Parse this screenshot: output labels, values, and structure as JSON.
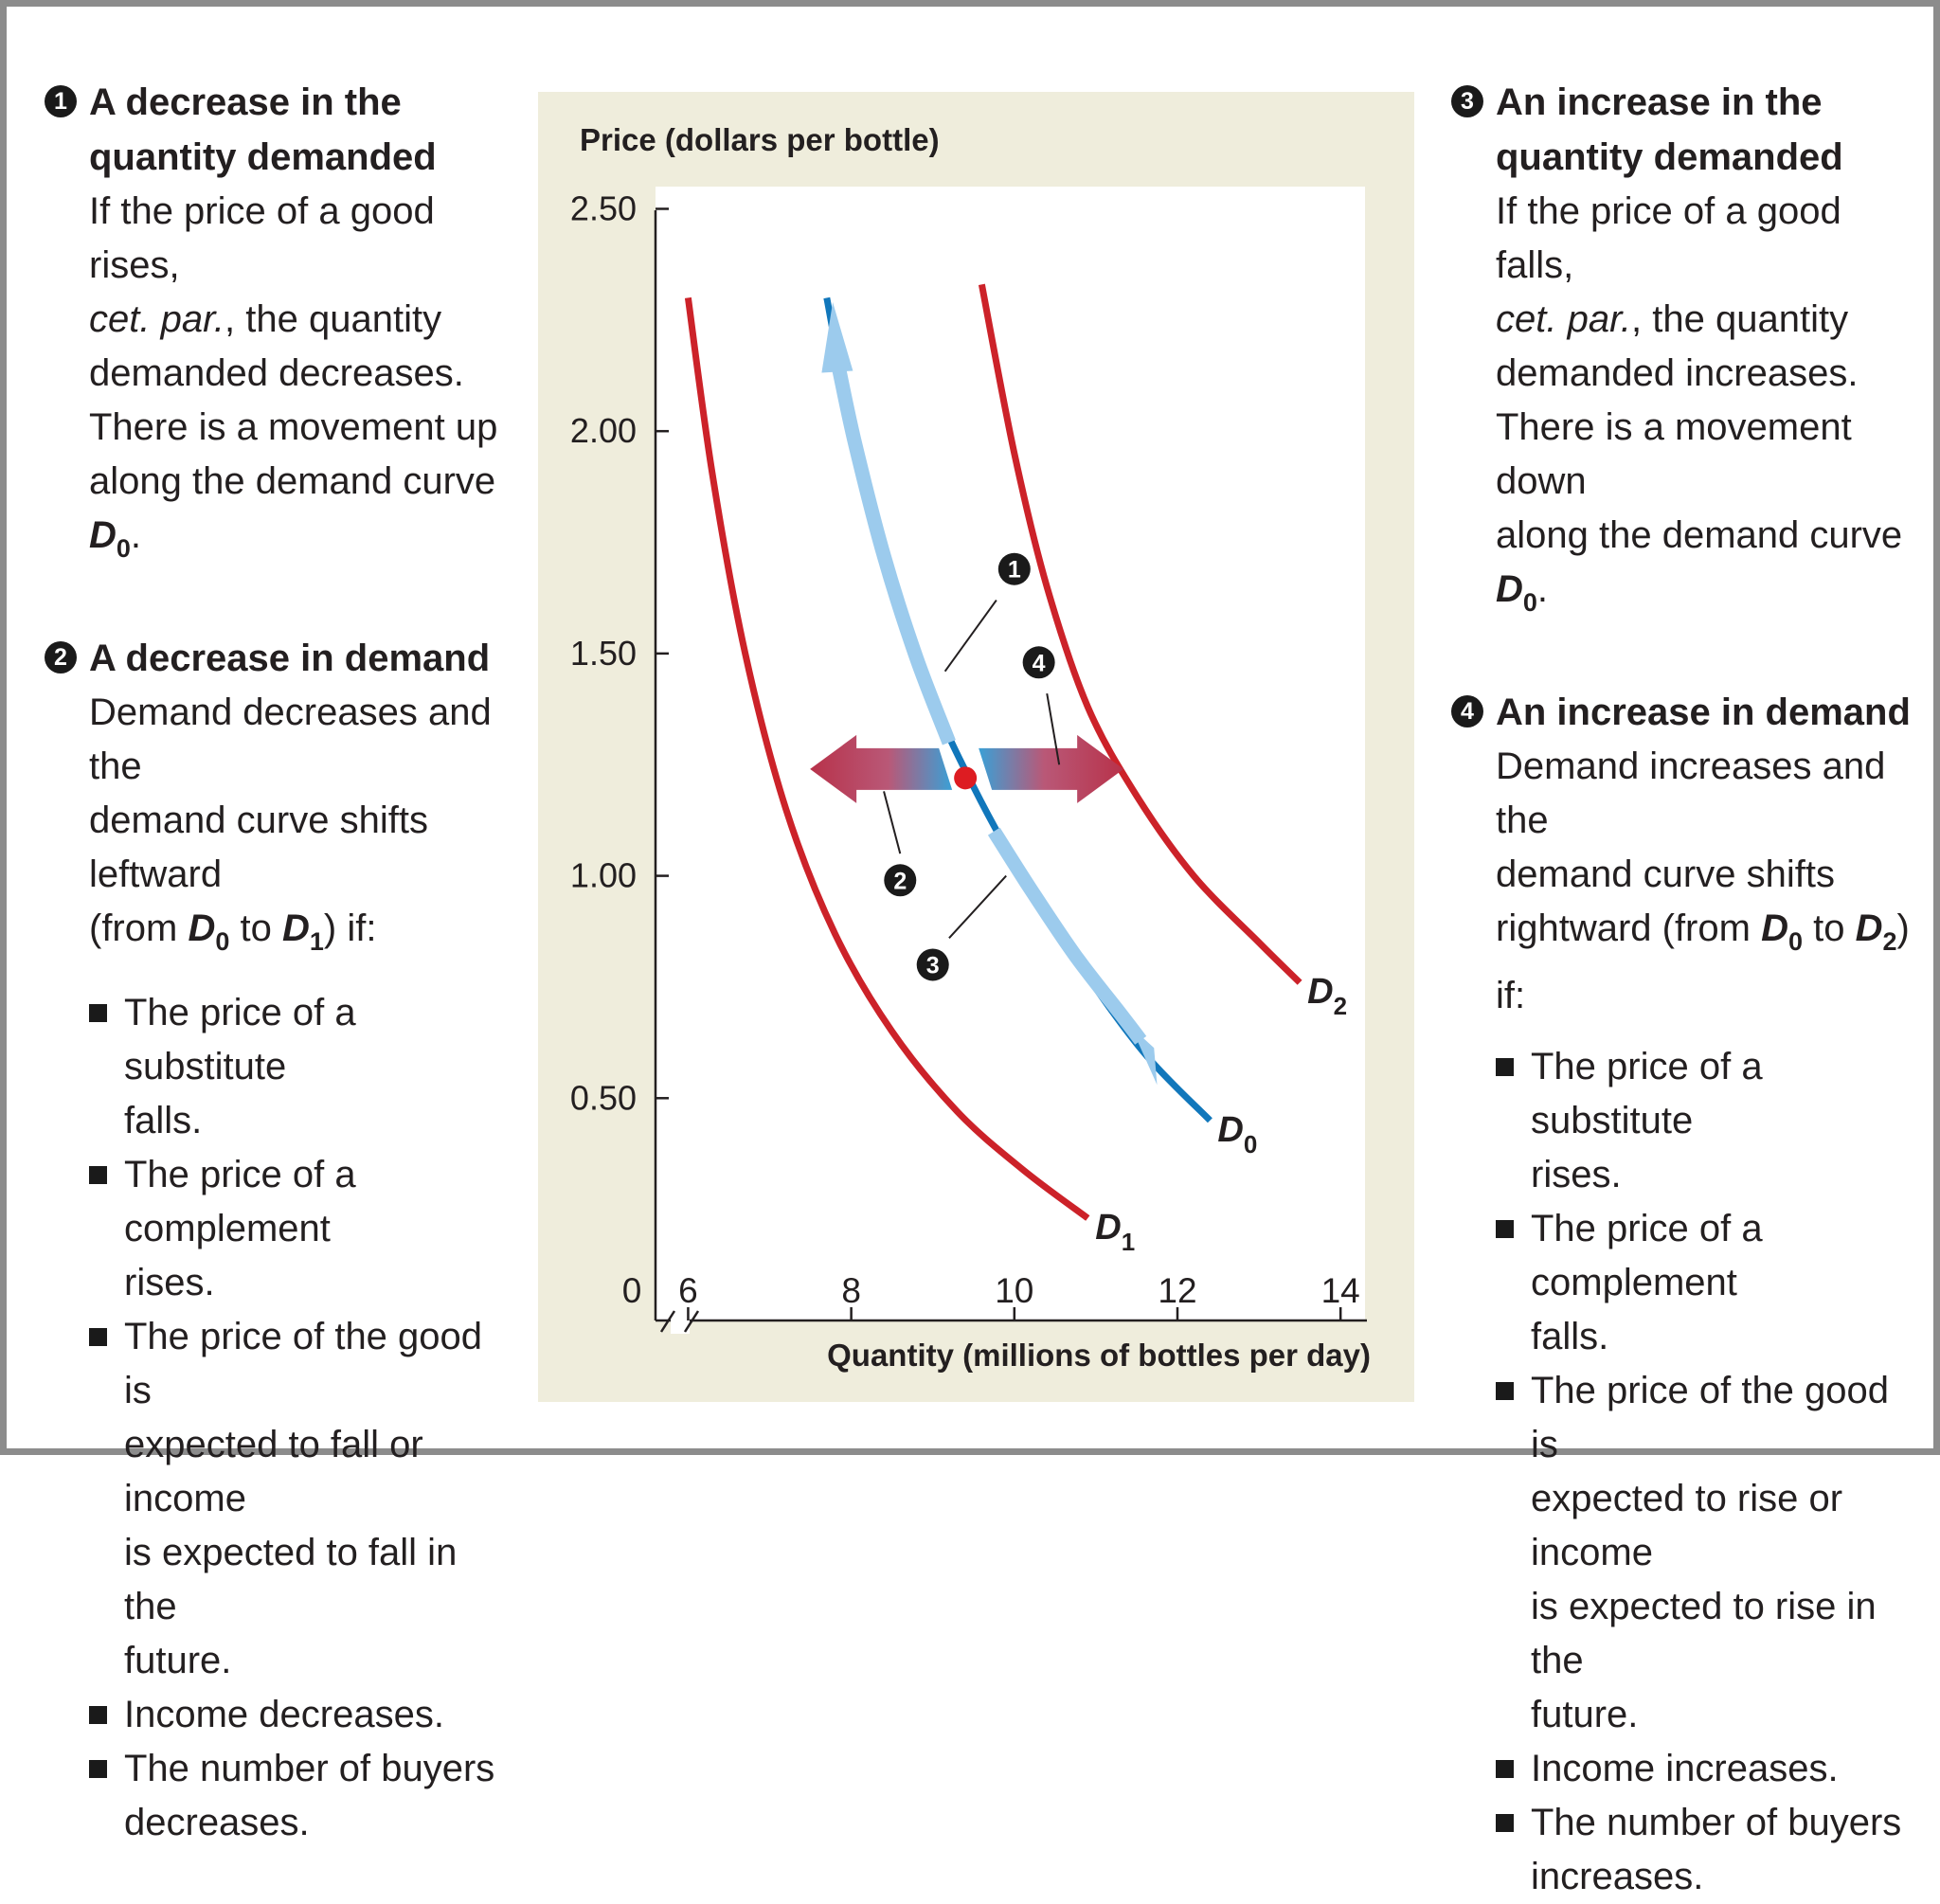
{
  "left_panel": {
    "block1": {
      "num": "1",
      "title_lines": [
        "A decrease in the",
        "quantity demanded"
      ],
      "body_lines": [
        "If the price of a good rises,",
        "cet. par.",
        ", the quantity",
        "demanded decreases.",
        "There is a movement up",
        "along the demand curve"
      ],
      "curve_letter": "D",
      "curve_sub": "0",
      "curve_end": "."
    },
    "block2": {
      "num": "2",
      "title": "A decrease in demand",
      "body_lines": [
        "Demand decreases and the",
        "demand curve shifts leftward",
        "(from"
      ],
      "from_letter": "D",
      "from_sub": "0",
      "to_word": "to",
      "to_letter": "D",
      "to_sub": "1",
      "if_text": ") if:",
      "items": [
        [
          "The price of a substitute",
          "falls."
        ],
        [
          "The price of a complement",
          "rises."
        ],
        [
          "The price of the good is",
          "expected to fall or income",
          "is expected to fall in the",
          "future."
        ],
        [
          "Income decreases."
        ],
        [
          "The number of buyers",
          "decreases."
        ]
      ]
    }
  },
  "right_panel": {
    "block3": {
      "num": "3",
      "title_lines": [
        "An increase in the",
        "quantity demanded"
      ],
      "body_lines": [
        "If the price of a good falls,",
        "cet. par.",
        ", the quantity",
        "demanded increases.",
        "There is a movement down",
        "along the demand curve"
      ],
      "curve_letter": "D",
      "curve_sub": "0",
      "curve_end": "."
    },
    "block4": {
      "num": "4",
      "title": "An increase in demand",
      "body_lines": [
        "Demand increases and the",
        "demand curve shifts",
        "rightward (from"
      ],
      "from_letter": "D",
      "from_sub": "0",
      "to_word": "to",
      "to_letter": "D",
      "to_sub": "2",
      "if_text": ") if:",
      "items": [
        [
          "The price of a substitute",
          "rises."
        ],
        [
          "The price of a complement",
          "falls."
        ],
        [
          "The price of the good is",
          "expected to rise or income",
          "is expected to rise in the",
          "future."
        ],
        [
          "Income increases."
        ],
        [
          "The number of buyers",
          "increases."
        ]
      ]
    }
  },
  "chart_data": {
    "type": "line",
    "ylabel": "Price (dollars per bottle)",
    "xlabel": "Quantity (millions of bottles per day)",
    "origin_label": "0",
    "x_ticks": [
      6,
      8,
      10,
      12,
      14
    ],
    "x_tick_labels": [
      "6",
      "8",
      "10",
      "12",
      "14"
    ],
    "y_ticks": [
      0.5,
      1.0,
      1.5,
      2.0,
      2.5
    ],
    "y_tick_labels": [
      "0.50",
      "1.00",
      "1.50",
      "2.00",
      "2.50"
    ],
    "xlim": [
      5.6,
      14.3
    ],
    "ylim": [
      0,
      2.55
    ],
    "axis_break": true,
    "series": [
      {
        "name": "D1",
        "letter": "D",
        "sub": "1",
        "color": "#cc2229",
        "x": [
          6.0,
          6.3,
          6.7,
          7.2,
          7.8,
          8.5,
          9.3,
          10.1,
          10.9
        ],
        "y": [
          2.3,
          1.9,
          1.5,
          1.15,
          0.87,
          0.65,
          0.47,
          0.34,
          0.23
        ]
      },
      {
        "name": "D0",
        "letter": "D",
        "sub": "0",
        "color": "#1177bb",
        "x": [
          7.7,
          8.0,
          8.5,
          9.0,
          9.5,
          10.1,
          10.8,
          11.6,
          12.4
        ],
        "y": [
          2.3,
          2.02,
          1.68,
          1.4,
          1.2,
          1.0,
          0.8,
          0.6,
          0.45
        ]
      },
      {
        "name": "D2",
        "letter": "D",
        "sub": "2",
        "color": "#cc2229",
        "x": [
          9.6,
          10.0,
          10.4,
          10.9,
          11.5,
          12.2,
          13.0,
          13.5
        ],
        "y": [
          2.33,
          1.95,
          1.65,
          1.38,
          1.18,
          1.0,
          0.85,
          0.76
        ]
      }
    ],
    "point": {
      "x": 9.4,
      "y": 1.22,
      "color": "#dd1c22"
    },
    "callouts": [
      {
        "label": "1",
        "meaning": "movement up along D0 (decrease in quantity demanded)"
      },
      {
        "label": "2",
        "meaning": "shift leftward to D1 (decrease in demand)"
      },
      {
        "label": "3",
        "meaning": "movement down along D0 (increase in quantity demanded)"
      },
      {
        "label": "4",
        "meaning": "shift rightward to D2 (increase in demand)"
      }
    ],
    "colors": {
      "panel_bg": "#efeddc",
      "plot_bg": "#ffffff",
      "axis": "#231f20",
      "move_arrow": "#9ccbed",
      "shift_arrow_blue": "#3aa0d6",
      "shift_arrow_red": "#b8324a"
    }
  }
}
